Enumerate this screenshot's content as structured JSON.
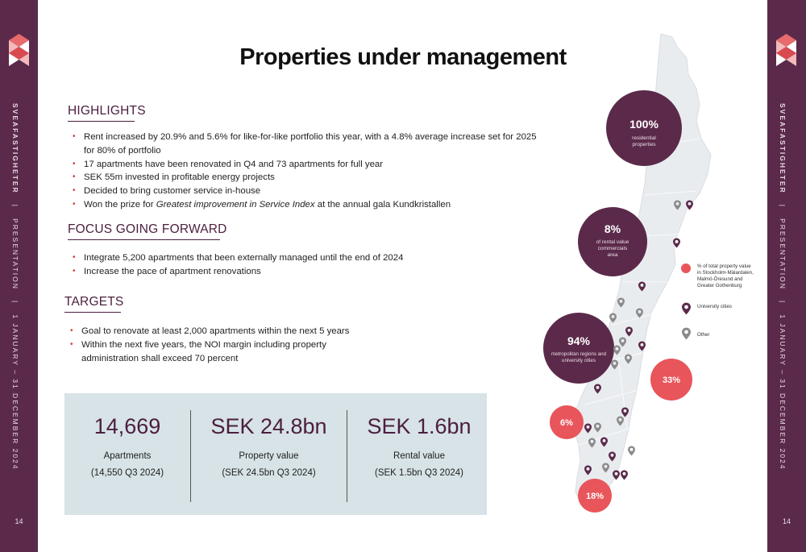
{
  "brand": "SVEAFASTIGHETER",
  "sidebar": {
    "text_parts": [
      "SVEAFASTIGHETER",
      "|",
      "PRESENTATION",
      "|",
      "1 JANUARY – 31 DECEMBER 2024"
    ],
    "page_number": "14"
  },
  "title": "Properties under management",
  "highlights": {
    "heading": "HIGHLIGHTS",
    "items": [
      "Rent increased by 20.9% and 5.6% for like-for-like portfolio this year, with a 4.8% average increase set for 2025 for 80% of portfolio",
      "17 apartments have been renovated in Q4 and 73 apartments for full year",
      "SEK 55m invested in profitable energy projects",
      "Decided to bring customer service in-house"
    ],
    "prize": {
      "before": "Won the prize for ",
      "italic": "Greatest improvement in Service Index",
      "after": " at the annual gala Kundkristallen"
    }
  },
  "focus": {
    "heading": "FOCUS GOING FORWARD",
    "items": [
      "Integrate 5,200 apartments that been externally managed until the end of 2024",
      "Increase the pace of apartment renovations"
    ]
  },
  "targets": {
    "heading": "TARGETS",
    "items": [
      "Goal to renovate at least 2,000 apartments within the next 5 years",
      "Within the next five years, the NOI margin including property administration shall exceed 70 percent"
    ]
  },
  "stats": [
    {
      "value": "14,669",
      "label": "Apartments",
      "sub": "(14,550 Q3 2024)"
    },
    {
      "value": "SEK 24.8bn",
      "label": "Property value",
      "sub": "(SEK 24.5bn Q3 2024)"
    },
    {
      "value": "SEK 1.6bn",
      "label": "Rental value",
      "sub": "(SEK 1.5bn Q3 2024)"
    }
  ],
  "map": {
    "circles": [
      {
        "value": "100%",
        "label_lines": [
          "residential",
          "properties"
        ]
      },
      {
        "value": "8%",
        "label_lines": [
          "of rental value",
          "commercials",
          "area"
        ]
      },
      {
        "value": "94%",
        "label_lines": [
          "metropolitan regions and",
          "university cities"
        ]
      }
    ],
    "red_circles": [
      "33%",
      "6%",
      "18%"
    ],
    "legend": {
      "red_lines": [
        "% of total property value",
        "in Stockholm-Mälardalen,",
        "Malmö-Öresund and",
        "Greater Gothenburg"
      ],
      "university": "University cities",
      "other": "Other"
    },
    "colors": {
      "plum": "#5b2a4a",
      "red": "#e8555a",
      "grey_pin": "#8a8a8a",
      "map_fill": "#e9ecef"
    }
  }
}
